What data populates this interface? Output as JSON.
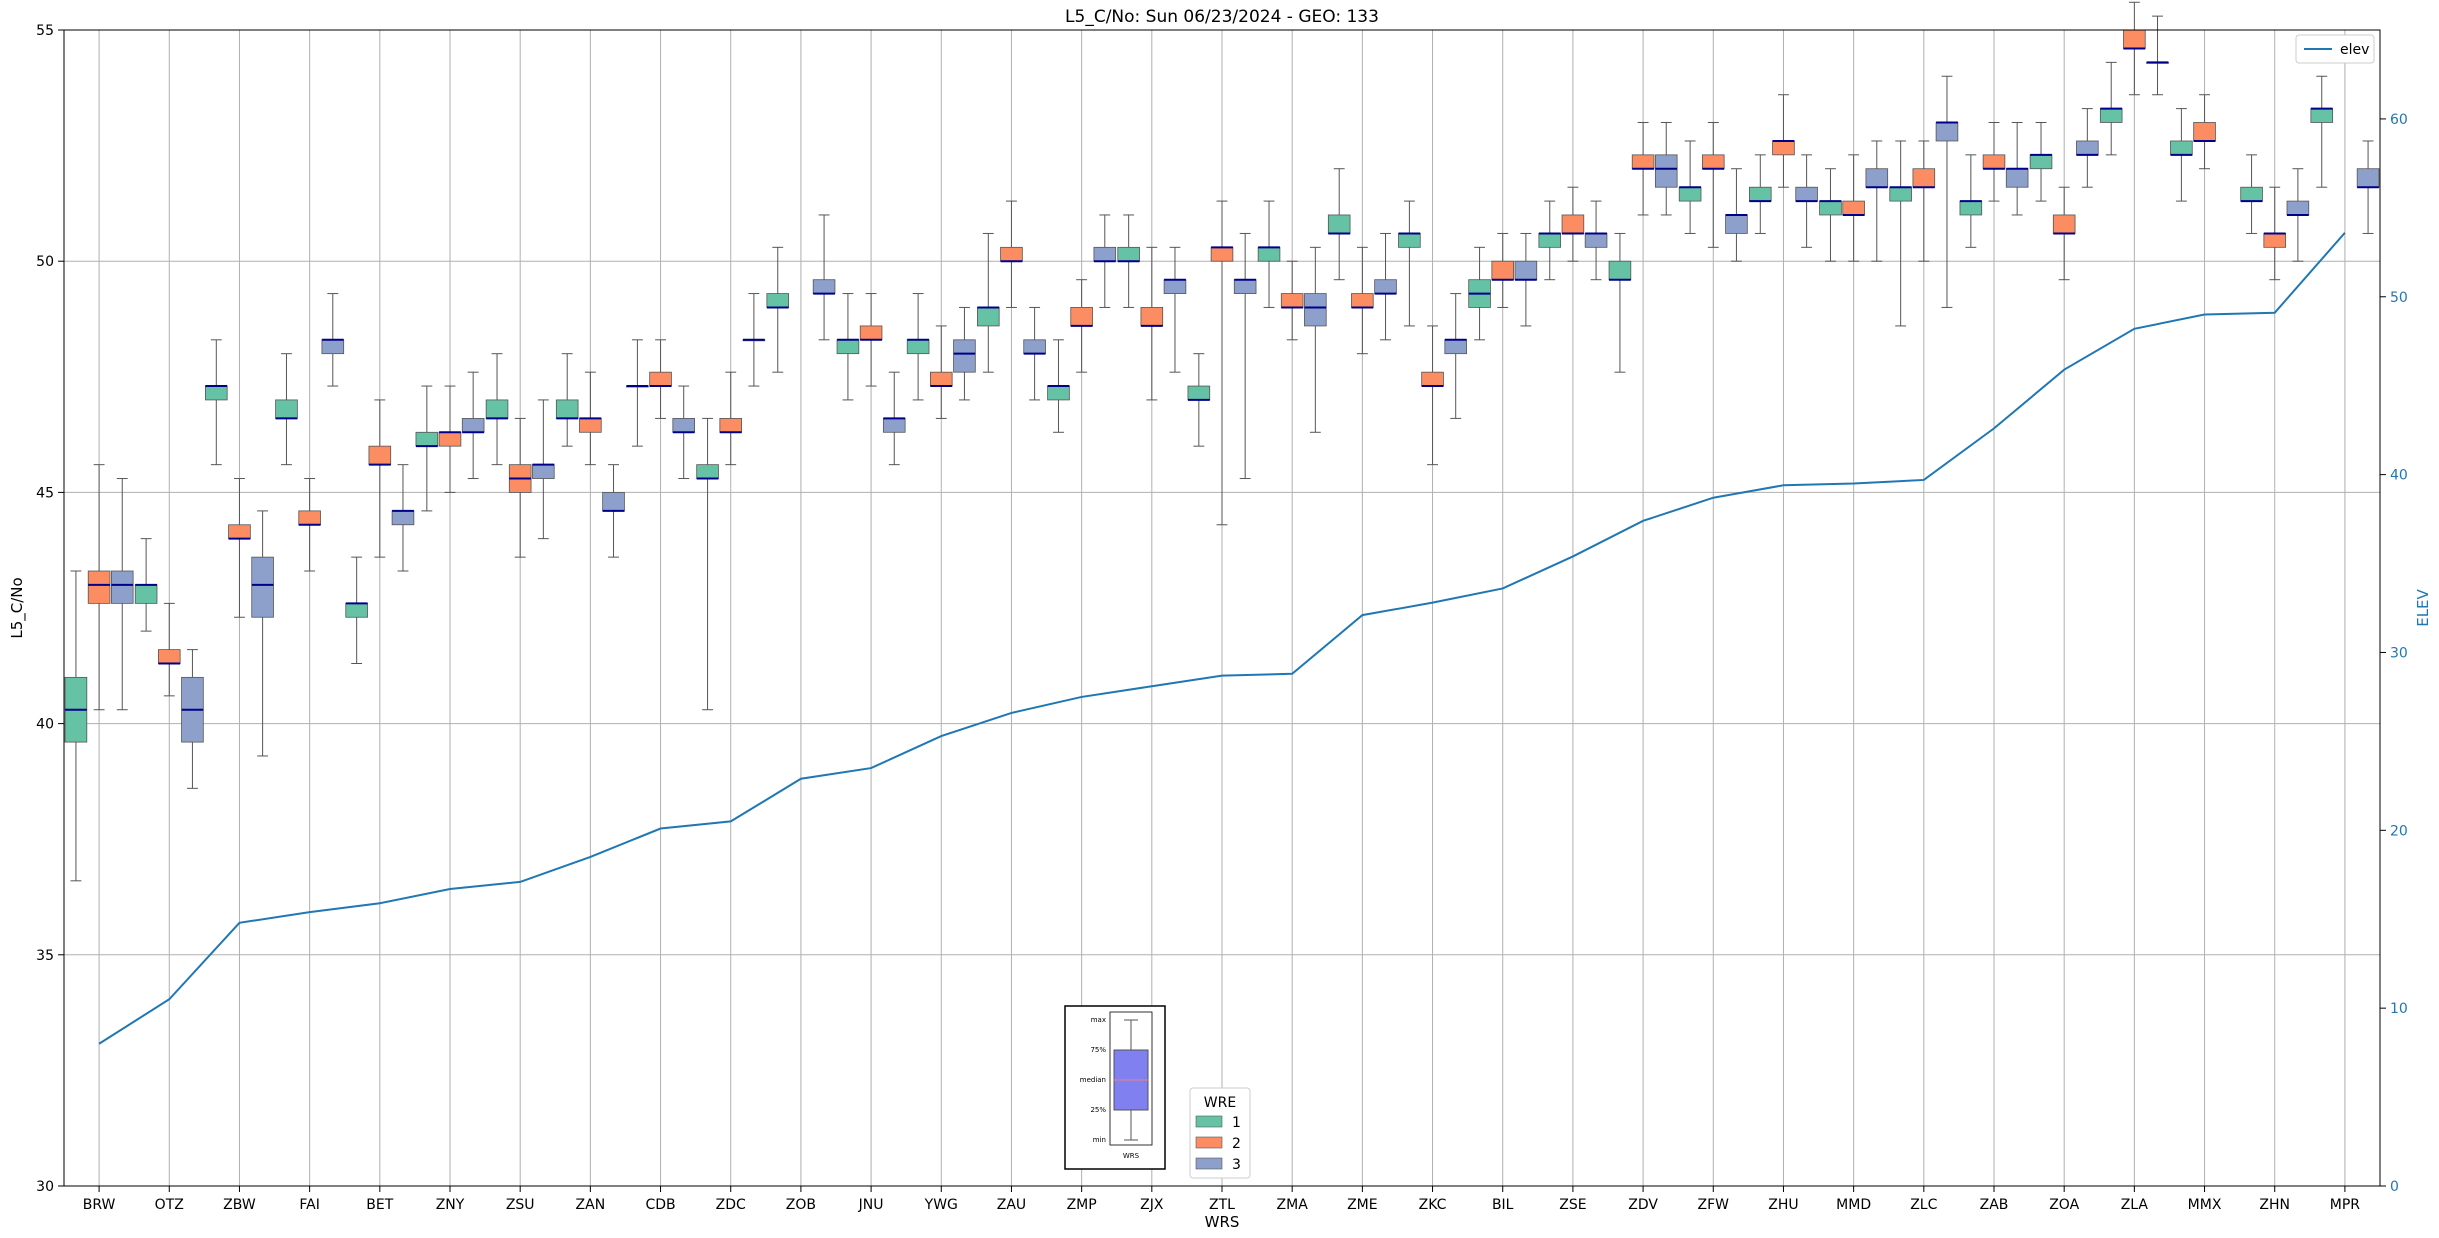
{
  "chart_data": {
    "type": "box",
    "title": "L5_C/No: Sun 06/23/2024 - GEO: 133",
    "xlabel": "WRS",
    "ylabel": "L5_C/No",
    "ylabel_right": "ELEV",
    "ylim": [
      30,
      55
    ],
    "ylim_right": [
      0,
      65
    ],
    "yticks": [
      30,
      35,
      40,
      45,
      50,
      55
    ],
    "yticks_right": [
      0,
      10,
      20,
      30,
      40,
      50,
      60
    ],
    "grid": true,
    "colors": {
      "1": "#66c2a5",
      "2": "#fc8d62",
      "3": "#8da0cb",
      "median": "#00008b",
      "elev": "#1f77b4"
    },
    "legend_elev": {
      "label": "elev",
      "placement": "top-right"
    },
    "legend_wre": {
      "title": "WRE",
      "entries": [
        "1",
        "2",
        "3"
      ],
      "placement": "lower-center"
    },
    "inset": {
      "labels": [
        "max",
        "75%",
        "median",
        "25%",
        "min"
      ],
      "xlabel": "WRS"
    },
    "categories": [
      "BRW",
      "OTZ",
      "ZBW",
      "FAI",
      "BET",
      "ZNY",
      "ZSU",
      "ZAN",
      "CDB",
      "ZDC",
      "ZOB",
      "JNU",
      "YWG",
      "ZAU",
      "ZMP",
      "ZJX",
      "ZTL",
      "ZMA",
      "ZME",
      "ZKC",
      "BIL",
      "ZSE",
      "ZDV",
      "ZFW",
      "ZHU",
      "MMD",
      "ZLC",
      "ZAB",
      "ZOA",
      "ZLA",
      "MMX",
      "ZHN",
      "MPR"
    ],
    "elev": [
      8,
      10.5,
      14.8,
      15.4,
      15.9,
      16.7,
      17.1,
      18.5,
      20.1,
      20.5,
      22.9,
      23.5,
      25.3,
      26.6,
      27.5,
      28.1,
      28.7,
      28.8,
      32.1,
      32.8,
      33.6,
      35.4,
      37.4,
      38.7,
      39.4,
      39.5,
      39.7,
      42.6,
      45.9,
      48.2,
      49.0,
      49.1,
      53.6
    ],
    "boxes": [
      {
        "cat": "BRW",
        "wre": 1,
        "min": 36.6,
        "q1": 39.6,
        "median": 40.3,
        "q3": 41.0,
        "max": 43.3
      },
      {
        "cat": "BRW",
        "wre": 2,
        "min": 40.3,
        "q1": 42.6,
        "median": 43.0,
        "q3": 43.3,
        "max": 45.6
      },
      {
        "cat": "BRW",
        "wre": 3,
        "min": 40.3,
        "q1": 42.6,
        "median": 43.0,
        "q3": 43.3,
        "max": 45.3
      },
      {
        "cat": "OTZ",
        "wre": 1,
        "min": 42.0,
        "q1": 42.6,
        "median": 43.0,
        "q3": 43.0,
        "max": 44.0
      },
      {
        "cat": "OTZ",
        "wre": 2,
        "min": 40.6,
        "q1": 41.3,
        "median": 41.3,
        "q3": 41.6,
        "max": 42.6
      },
      {
        "cat": "OTZ",
        "wre": 3,
        "min": 38.6,
        "q1": 39.6,
        "median": 40.3,
        "q3": 41.0,
        "max": 41.6
      },
      {
        "cat": "ZBW",
        "wre": 1,
        "min": 45.6,
        "q1": 47.0,
        "median": 47.3,
        "q3": 47.3,
        "max": 48.3
      },
      {
        "cat": "ZBW",
        "wre": 2,
        "min": 42.3,
        "q1": 44.0,
        "median": 44.0,
        "q3": 44.3,
        "max": 45.3
      },
      {
        "cat": "ZBW",
        "wre": 3,
        "min": 39.3,
        "q1": 42.3,
        "median": 43.0,
        "q3": 43.6,
        "max": 44.6
      },
      {
        "cat": "FAI",
        "wre": 1,
        "min": 45.6,
        "q1": 46.6,
        "median": 46.6,
        "q3": 47.0,
        "max": 48.0
      },
      {
        "cat": "FAI",
        "wre": 2,
        "min": 43.3,
        "q1": 44.3,
        "median": 44.3,
        "q3": 44.6,
        "max": 45.3
      },
      {
        "cat": "FAI",
        "wre": 3,
        "min": 47.3,
        "q1": 48.0,
        "median": 48.3,
        "q3": 48.3,
        "max": 49.3
      },
      {
        "cat": "BET",
        "wre": 1,
        "min": 41.3,
        "q1": 42.3,
        "median": 42.6,
        "q3": 42.6,
        "max": 43.6
      },
      {
        "cat": "BET",
        "wre": 2,
        "min": 43.6,
        "q1": 45.6,
        "median": 45.6,
        "q3": 46.0,
        "max": 47.0
      },
      {
        "cat": "BET",
        "wre": 3,
        "min": 43.3,
        "q1": 44.3,
        "median": 44.6,
        "q3": 44.6,
        "max": 45.6
      },
      {
        "cat": "ZNY",
        "wre": 1,
        "min": 44.6,
        "q1": 46.0,
        "median": 46.0,
        "q3": 46.3,
        "max": 47.3
      },
      {
        "cat": "ZNY",
        "wre": 2,
        "min": 45.0,
        "q1": 46.0,
        "median": 46.3,
        "q3": 46.3,
        "max": 47.3
      },
      {
        "cat": "ZNY",
        "wre": 3,
        "min": 45.3,
        "q1": 46.3,
        "median": 46.3,
        "q3": 46.6,
        "max": 47.6
      },
      {
        "cat": "ZSU",
        "wre": 1,
        "min": 45.6,
        "q1": 46.6,
        "median": 46.6,
        "q3": 47.0,
        "max": 48.0
      },
      {
        "cat": "ZSU",
        "wre": 2,
        "min": 43.6,
        "q1": 45.0,
        "median": 45.3,
        "q3": 45.6,
        "max": 46.6
      },
      {
        "cat": "ZSU",
        "wre": 3,
        "min": 44.0,
        "q1": 45.3,
        "median": 45.6,
        "q3": 45.6,
        "max": 47.0
      },
      {
        "cat": "ZAN",
        "wre": 1,
        "min": 46.0,
        "q1": 46.6,
        "median": 46.6,
        "q3": 47.0,
        "max": 48.0
      },
      {
        "cat": "ZAN",
        "wre": 2,
        "min": 45.6,
        "q1": 46.3,
        "median": 46.6,
        "q3": 46.6,
        "max": 47.6
      },
      {
        "cat": "ZAN",
        "wre": 3,
        "min": 43.6,
        "q1": 44.6,
        "median": 44.6,
        "q3": 45.0,
        "max": 45.6
      },
      {
        "cat": "CDB",
        "wre": 1,
        "min": 46.0,
        "q1": 47.3,
        "median": 47.3,
        "q3": 47.3,
        "max": 48.3
      },
      {
        "cat": "CDB",
        "wre": 2,
        "min": 46.6,
        "q1": 47.3,
        "median": 47.3,
        "q3": 47.6,
        "max": 48.3
      },
      {
        "cat": "CDB",
        "wre": 3,
        "min": 45.3,
        "q1": 46.3,
        "median": 46.3,
        "q3": 46.6,
        "max": 47.3
      },
      {
        "cat": "ZDC",
        "wre": 1,
        "min": 40.3,
        "q1": 45.3,
        "median": 45.3,
        "q3": 45.6,
        "max": 46.6
      },
      {
        "cat": "ZDC",
        "wre": 2,
        "min": 45.6,
        "q1": 46.3,
        "median": 46.3,
        "q3": 46.6,
        "max": 47.6
      },
      {
        "cat": "ZDC",
        "wre": 3,
        "min": 47.3,
        "q1": 48.3,
        "median": 48.3,
        "q3": 48.3,
        "max": 49.3
      },
      {
        "cat": "ZOB",
        "wre": 1,
        "min": 47.6,
        "q1": 49.0,
        "median": 49.0,
        "q3": 49.3,
        "max": 50.3
      },
      {
        "cat": "ZOB",
        "wre": 3,
        "min": 48.3,
        "q1": 49.3,
        "median": 49.3,
        "q3": 49.6,
        "max": 51.0
      },
      {
        "cat": "JNU",
        "wre": 1,
        "min": 47.0,
        "q1": 48.0,
        "median": 48.3,
        "q3": 48.3,
        "max": 49.3
      },
      {
        "cat": "JNU",
        "wre": 2,
        "min": 47.3,
        "q1": 48.3,
        "median": 48.3,
        "q3": 48.6,
        "max": 49.3
      },
      {
        "cat": "JNU",
        "wre": 3,
        "min": 45.6,
        "q1": 46.3,
        "median": 46.6,
        "q3": 46.6,
        "max": 47.6
      },
      {
        "cat": "YWG",
        "wre": 1,
        "min": 47.0,
        "q1": 48.0,
        "median": 48.3,
        "q3": 48.3,
        "max": 49.3
      },
      {
        "cat": "YWG",
        "wre": 2,
        "min": 46.6,
        "q1": 47.3,
        "median": 47.3,
        "q3": 47.6,
        "max": 48.6
      },
      {
        "cat": "YWG",
        "wre": 3,
        "min": 47.0,
        "q1": 47.6,
        "median": 48.0,
        "q3": 48.3,
        "max": 49.0
      },
      {
        "cat": "ZAU",
        "wre": 1,
        "min": 47.6,
        "q1": 48.6,
        "median": 49.0,
        "q3": 49.0,
        "max": 50.6
      },
      {
        "cat": "ZAU",
        "wre": 2,
        "min": 49.0,
        "q1": 50.0,
        "median": 50.0,
        "q3": 50.3,
        "max": 51.3
      },
      {
        "cat": "ZAU",
        "wre": 3,
        "min": 47.0,
        "q1": 48.0,
        "median": 48.0,
        "q3": 48.3,
        "max": 49.0
      },
      {
        "cat": "ZMP",
        "wre": 1,
        "min": 46.3,
        "q1": 47.0,
        "median": 47.3,
        "q3": 47.3,
        "max": 48.3
      },
      {
        "cat": "ZMP",
        "wre": 2,
        "min": 47.6,
        "q1": 48.6,
        "median": 48.6,
        "q3": 49.0,
        "max": 49.6
      },
      {
        "cat": "ZMP",
        "wre": 3,
        "min": 49.0,
        "q1": 50.0,
        "median": 50.0,
        "q3": 50.3,
        "max": 51.0
      },
      {
        "cat": "ZJX",
        "wre": 1,
        "min": 49.0,
        "q1": 50.0,
        "median": 50.0,
        "q3": 50.3,
        "max": 51.0
      },
      {
        "cat": "ZJX",
        "wre": 2,
        "min": 47.0,
        "q1": 48.6,
        "median": 48.6,
        "q3": 49.0,
        "max": 50.3
      },
      {
        "cat": "ZJX",
        "wre": 3,
        "min": 47.6,
        "q1": 49.3,
        "median": 49.6,
        "q3": 49.6,
        "max": 50.3
      },
      {
        "cat": "ZTL",
        "wre": 1,
        "min": 46.0,
        "q1": 47.0,
        "median": 47.0,
        "q3": 47.3,
        "max": 48.0
      },
      {
        "cat": "ZTL",
        "wre": 2,
        "min": 44.3,
        "q1": 50.0,
        "median": 50.3,
        "q3": 50.3,
        "max": 51.3
      },
      {
        "cat": "ZTL",
        "wre": 3,
        "min": 45.3,
        "q1": 49.3,
        "median": 49.6,
        "q3": 49.6,
        "max": 50.6
      },
      {
        "cat": "ZMA",
        "wre": 1,
        "min": 49.0,
        "q1": 50.0,
        "median": 50.3,
        "q3": 50.3,
        "max": 51.3
      },
      {
        "cat": "ZMA",
        "wre": 2,
        "min": 48.3,
        "q1": 49.0,
        "median": 49.0,
        "q3": 49.3,
        "max": 50.0
      },
      {
        "cat": "ZMA",
        "wre": 3,
        "min": 46.3,
        "q1": 48.6,
        "median": 49.0,
        "q3": 49.3,
        "max": 50.3
      },
      {
        "cat": "ZME",
        "wre": 1,
        "min": 49.6,
        "q1": 50.6,
        "median": 50.6,
        "q3": 51.0,
        "max": 52.0
      },
      {
        "cat": "ZME",
        "wre": 2,
        "min": 48.0,
        "q1": 49.0,
        "median": 49.0,
        "q3": 49.3,
        "max": 50.3
      },
      {
        "cat": "ZME",
        "wre": 3,
        "min": 48.3,
        "q1": 49.3,
        "median": 49.3,
        "q3": 49.6,
        "max": 50.6
      },
      {
        "cat": "ZKC",
        "wre": 1,
        "min": 48.6,
        "q1": 50.3,
        "median": 50.6,
        "q3": 50.6,
        "max": 51.3
      },
      {
        "cat": "ZKC",
        "wre": 2,
        "min": 45.6,
        "q1": 47.3,
        "median": 47.3,
        "q3": 47.6,
        "max": 48.6
      },
      {
        "cat": "ZKC",
        "wre": 3,
        "min": 46.6,
        "q1": 48.0,
        "median": 48.3,
        "q3": 48.3,
        "max": 49.3
      },
      {
        "cat": "BIL",
        "wre": 1,
        "min": 48.3,
        "q1": 49.0,
        "median": 49.3,
        "q3": 49.6,
        "max": 50.3
      },
      {
        "cat": "BIL",
        "wre": 2,
        "min": 49.0,
        "q1": 49.6,
        "median": 49.6,
        "q3": 50.0,
        "max": 50.6
      },
      {
        "cat": "BIL",
        "wre": 3,
        "min": 48.6,
        "q1": 49.6,
        "median": 49.6,
        "q3": 50.0,
        "max": 50.6
      },
      {
        "cat": "ZSE",
        "wre": 1,
        "min": 49.6,
        "q1": 50.3,
        "median": 50.6,
        "q3": 50.6,
        "max": 51.3
      },
      {
        "cat": "ZSE",
        "wre": 2,
        "min": 50.0,
        "q1": 50.6,
        "median": 50.6,
        "q3": 51.0,
        "max": 51.6
      },
      {
        "cat": "ZSE",
        "wre": 3,
        "min": 49.6,
        "q1": 50.3,
        "median": 50.6,
        "q3": 50.6,
        "max": 51.3
      },
      {
        "cat": "ZDV",
        "wre": 1,
        "min": 47.6,
        "q1": 49.6,
        "median": 49.6,
        "q3": 50.0,
        "max": 50.6
      },
      {
        "cat": "ZDV",
        "wre": 2,
        "min": 51.0,
        "q1": 52.0,
        "median": 52.0,
        "q3": 52.3,
        "max": 53.0
      },
      {
        "cat": "ZDV",
        "wre": 3,
        "min": 51.0,
        "q1": 51.6,
        "median": 52.0,
        "q3": 52.3,
        "max": 53.0
      },
      {
        "cat": "ZFW",
        "wre": 1,
        "min": 50.6,
        "q1": 51.3,
        "median": 51.6,
        "q3": 51.6,
        "max": 52.6
      },
      {
        "cat": "ZFW",
        "wre": 2,
        "min": 50.3,
        "q1": 52.0,
        "median": 52.0,
        "q3": 52.3,
        "max": 53.0
      },
      {
        "cat": "ZFW",
        "wre": 3,
        "min": 50.0,
        "q1": 50.6,
        "median": 51.0,
        "q3": 51.0,
        "max": 52.0
      },
      {
        "cat": "ZHU",
        "wre": 1,
        "min": 50.6,
        "q1": 51.3,
        "median": 51.3,
        "q3": 51.6,
        "max": 52.3
      },
      {
        "cat": "ZHU",
        "wre": 2,
        "min": 51.6,
        "q1": 52.3,
        "median": 52.6,
        "q3": 52.6,
        "max": 53.6
      },
      {
        "cat": "ZHU",
        "wre": 3,
        "min": 50.3,
        "q1": 51.3,
        "median": 51.3,
        "q3": 51.6,
        "max": 52.3
      },
      {
        "cat": "MMD",
        "wre": 1,
        "min": 50.0,
        "q1": 51.0,
        "median": 51.3,
        "q3": 51.3,
        "max": 52.0
      },
      {
        "cat": "MMD",
        "wre": 2,
        "min": 50.0,
        "q1": 51.0,
        "median": 51.0,
        "q3": 51.3,
        "max": 52.3
      },
      {
        "cat": "MMD",
        "wre": 3,
        "min": 50.0,
        "q1": 51.6,
        "median": 51.6,
        "q3": 52.0,
        "max": 52.6
      },
      {
        "cat": "ZLC",
        "wre": 1,
        "min": 48.6,
        "q1": 51.3,
        "median": 51.6,
        "q3": 51.6,
        "max": 52.6
      },
      {
        "cat": "ZLC",
        "wre": 2,
        "min": 50.0,
        "q1": 51.6,
        "median": 51.6,
        "q3": 52.0,
        "max": 52.6
      },
      {
        "cat": "ZLC",
        "wre": 3,
        "min": 49.0,
        "q1": 52.6,
        "median": 53.0,
        "q3": 53.0,
        "max": 54.0
      },
      {
        "cat": "ZAB",
        "wre": 1,
        "min": 50.3,
        "q1": 51.0,
        "median": 51.3,
        "q3": 51.3,
        "max": 52.3
      },
      {
        "cat": "ZAB",
        "wre": 2,
        "min": 51.3,
        "q1": 52.0,
        "median": 52.0,
        "q3": 52.3,
        "max": 53.0
      },
      {
        "cat": "ZAB",
        "wre": 3,
        "min": 51.0,
        "q1": 51.6,
        "median": 52.0,
        "q3": 52.0,
        "max": 53.0
      },
      {
        "cat": "ZOA",
        "wre": 1,
        "min": 51.3,
        "q1": 52.0,
        "median": 52.3,
        "q3": 52.3,
        "max": 53.0
      },
      {
        "cat": "ZOA",
        "wre": 2,
        "min": 49.6,
        "q1": 50.6,
        "median": 50.6,
        "q3": 51.0,
        "max": 51.6
      },
      {
        "cat": "ZOA",
        "wre": 3,
        "min": 51.6,
        "q1": 52.3,
        "median": 52.3,
        "q3": 52.6,
        "max": 53.3
      },
      {
        "cat": "ZLA",
        "wre": 1,
        "min": 52.3,
        "q1": 53.0,
        "median": 53.3,
        "q3": 53.3,
        "max": 54.3
      },
      {
        "cat": "ZLA",
        "wre": 2,
        "min": 53.6,
        "q1": 54.6,
        "median": 54.6,
        "q3": 55.0,
        "max": 55.6
      },
      {
        "cat": "ZLA",
        "wre": 3,
        "min": 53.6,
        "q1": 54.3,
        "median": 54.3,
        "q3": 54.3,
        "max": 55.3
      },
      {
        "cat": "MMX",
        "wre": 1,
        "min": 51.3,
        "q1": 52.3,
        "median": 52.3,
        "q3": 52.6,
        "max": 53.3
      },
      {
        "cat": "MMX",
        "wre": 2,
        "min": 52.0,
        "q1": 52.6,
        "median": 52.6,
        "q3": 53.0,
        "max": 53.6
      },
      {
        "cat": "ZHN",
        "wre": 1,
        "min": 50.6,
        "q1": 51.3,
        "median": 51.3,
        "q3": 51.6,
        "max": 52.3
      },
      {
        "cat": "ZHN",
        "wre": 2,
        "min": 49.6,
        "q1": 50.3,
        "median": 50.6,
        "q3": 50.6,
        "max": 51.6
      },
      {
        "cat": "ZHN",
        "wre": 3,
        "min": 50.0,
        "q1": 51.0,
        "median": 51.0,
        "q3": 51.3,
        "max": 52.0
      },
      {
        "cat": "MPR",
        "wre": 1,
        "min": 51.6,
        "q1": 53.0,
        "median": 53.3,
        "q3": 53.3,
        "max": 54.0
      },
      {
        "cat": "MPR",
        "wre": 3,
        "min": 50.6,
        "q1": 51.6,
        "median": 51.6,
        "q3": 52.0,
        "max": 52.6
      }
    ]
  }
}
